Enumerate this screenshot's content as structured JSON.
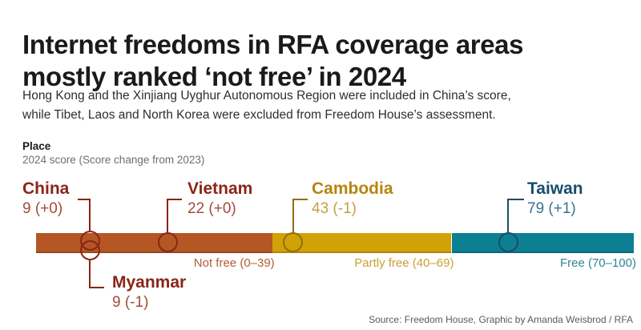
{
  "header": {
    "title_lines": [
      "Internet freedoms in RFA coverage areas",
      "mostly ranked ‘not free’ in 2024"
    ],
    "subtitle_lines": [
      "Hong Kong and the Xinjiang Uyghur Autonomous Region were included in China’s score,",
      "while Tibet, Laos and North Korea were excluded from Freedom House’s assessment."
    ]
  },
  "chart_data": {
    "type": "scatter",
    "title": "Internet freedoms in RFA coverage areas mostly ranked ‘not free’ in 2024",
    "legend": {
      "place_label": "Place",
      "score_note": "2024 score (Score change from 2023)"
    },
    "axis": {
      "min": 0,
      "max": 100
    },
    "bands": [
      {
        "name": "Not free",
        "label": "Not free (0–39)",
        "min": 0,
        "max": 39,
        "color": "#b45724",
        "label_color": "#b15e35"
      },
      {
        "name": "Partly free",
        "label": "Partly free (40–69)",
        "min": 40,
        "max": 69,
        "color": "#d2a106",
        "label_color": "#c9a032"
      },
      {
        "name": "Free",
        "label": "Free (70–100)",
        "min": 70,
        "max": 100,
        "color": "#0d7f93",
        "label_color": "#2e8598"
      }
    ],
    "points": [
      {
        "place": "China",
        "score": 9,
        "change": "+0",
        "score_label": "9 (+0)",
        "name_color": "#8a2518",
        "score_color": "#a14c38",
        "line_color": "#8a2518"
      },
      {
        "place": "Myanmar",
        "score": 9,
        "change": "-1",
        "score_label": "9 (-1)",
        "name_color": "#8a2518",
        "score_color": "#a14c38",
        "line_color": "#8a2518"
      },
      {
        "place": "Vietnam",
        "score": 22,
        "change": "+0",
        "score_label": "22 (+0)",
        "name_color": "#8a2518",
        "score_color": "#a14c38",
        "line_color": "#8a2518"
      },
      {
        "place": "Cambodia",
        "score": 43,
        "change": "-1",
        "score_label": "43 (-1)",
        "name_color": "#b5850f",
        "score_color": "#c4a045",
        "line_color": "#8f6f10"
      },
      {
        "place": "Taiwan",
        "score": 79,
        "change": "+1",
        "score_label": "79 (+1)",
        "name_color": "#174f6d",
        "score_color": "#3f6f92",
        "line_color": "#1c4b68"
      }
    ]
  },
  "footer": {
    "source": "Source: Freedom House, Graphic by Amanda Weisbrod / RFA"
  }
}
